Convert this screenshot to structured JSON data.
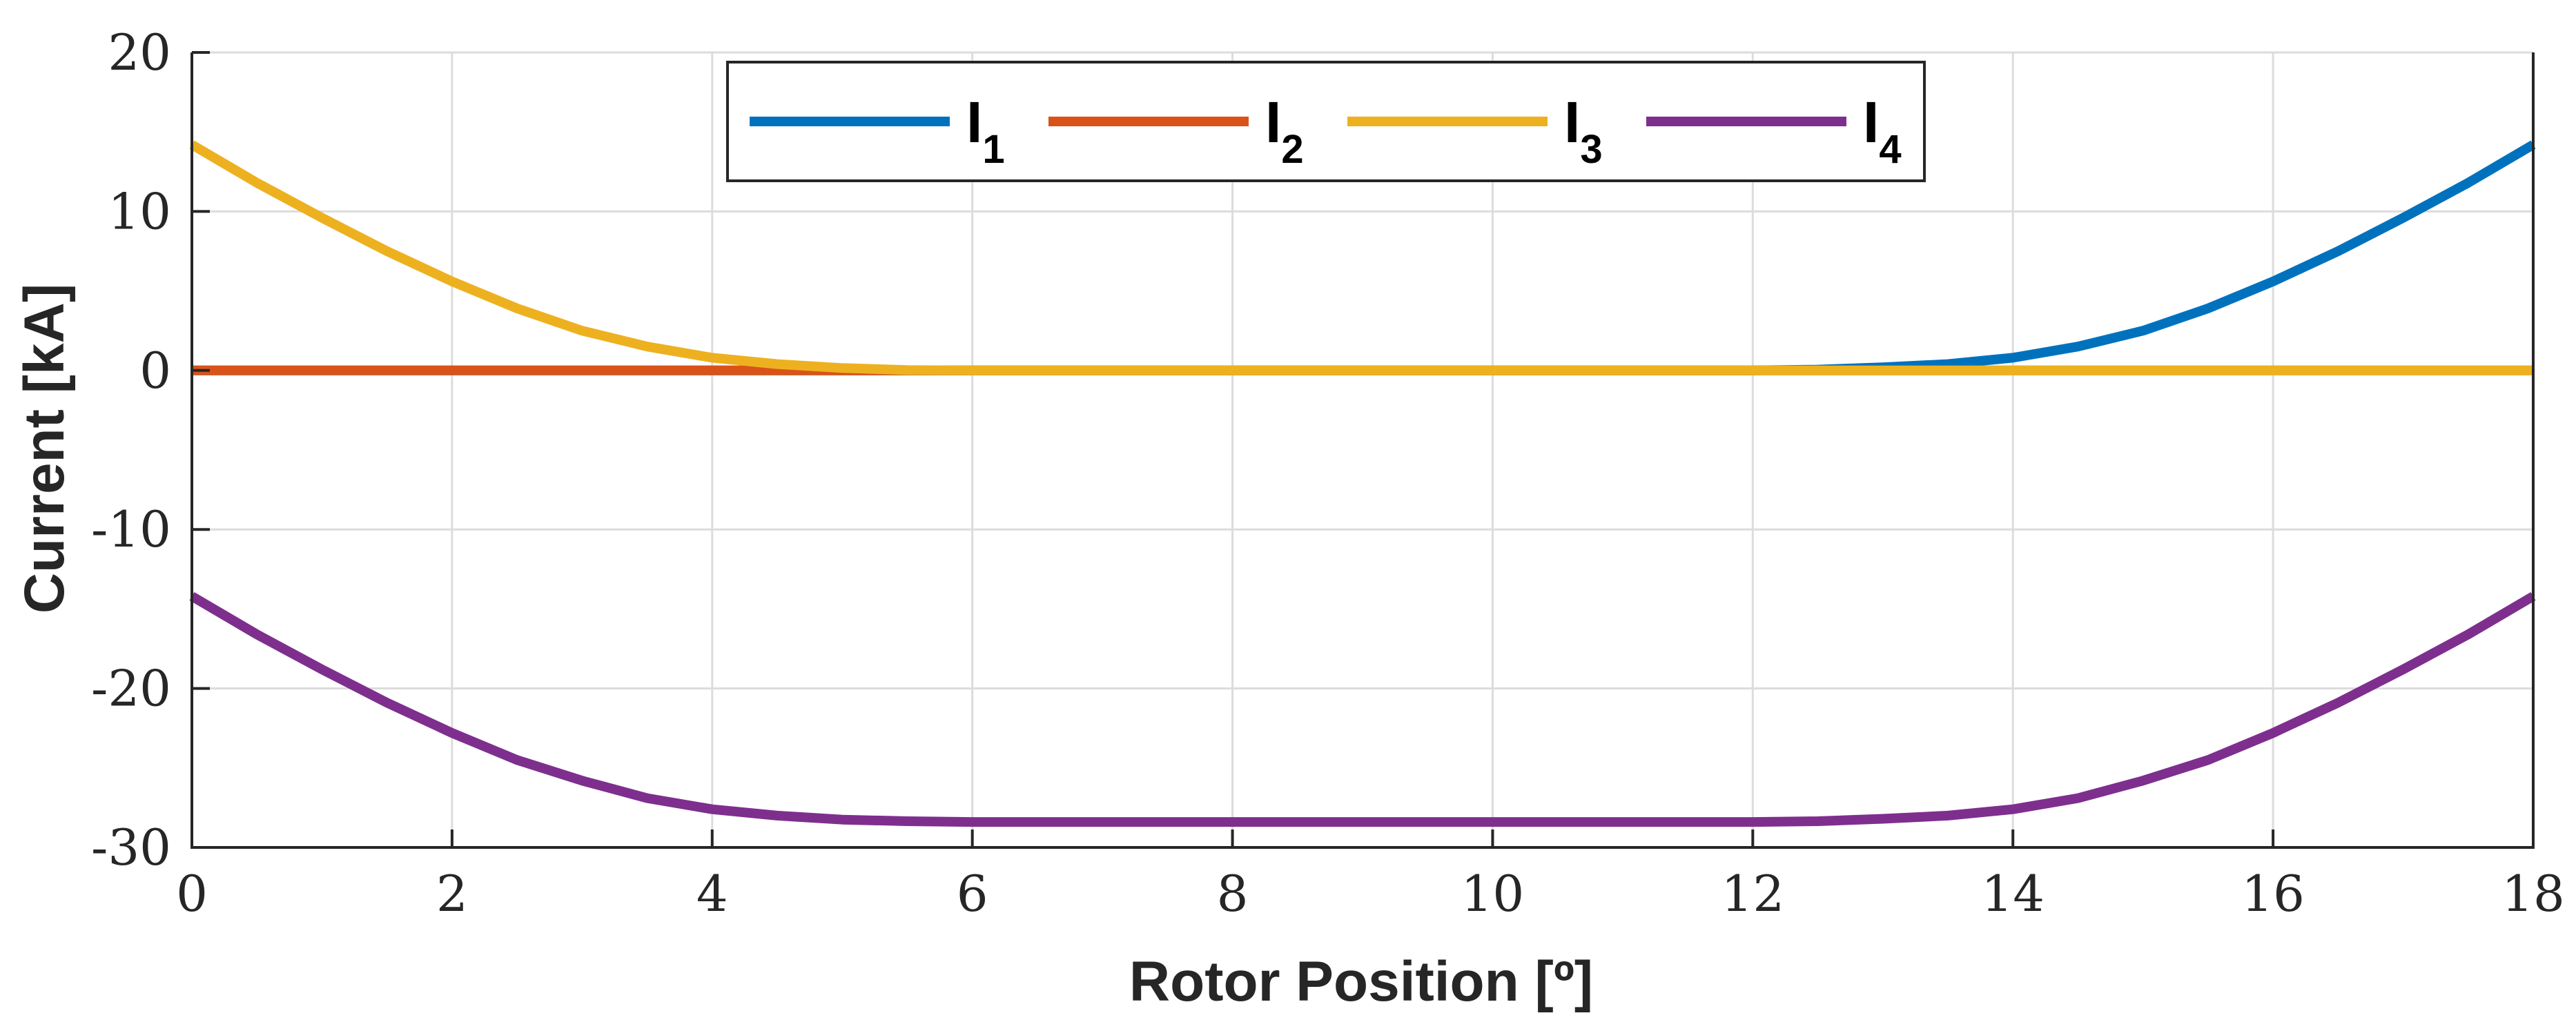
{
  "chart_data": {
    "type": "line",
    "title": "",
    "xlabel": "Rotor Position [º]",
    "ylabel": "Current [kA]",
    "xlim": [
      0,
      18
    ],
    "ylim": [
      -30,
      20
    ],
    "xticks": [
      0,
      2,
      4,
      6,
      8,
      10,
      12,
      14,
      16,
      18
    ],
    "yticks": [
      -30,
      -20,
      -10,
      0,
      10,
      20
    ],
    "grid": true,
    "legend": {
      "placement": "top-center",
      "orientation": "horizontal"
    },
    "series": [
      {
        "name": "I",
        "subscript": "1",
        "color": "#0072BD",
        "x": [
          0,
          2,
          4,
          6,
          8,
          10,
          12,
          12.5,
          13,
          13.5,
          14,
          14.5,
          15,
          15.5,
          16,
          16.5,
          17,
          17.5,
          18
        ],
        "y": [
          0,
          0,
          0,
          0,
          0,
          0,
          0,
          0.05,
          0.2,
          0.4,
          0.8,
          1.5,
          2.5,
          3.9,
          5.6,
          7.5,
          9.6,
          11.8,
          14.2
        ]
      },
      {
        "name": "I",
        "subscript": "2",
        "color": "#D95319",
        "x": [
          0,
          2,
          4,
          6,
          8,
          10,
          12,
          14,
          16,
          18
        ],
        "y": [
          0,
          0,
          0,
          0,
          0,
          0,
          0,
          0,
          0,
          0
        ]
      },
      {
        "name": "I",
        "subscript": "3",
        "color": "#EDB120",
        "x": [
          0,
          0.5,
          1,
          1.5,
          2,
          2.5,
          3,
          3.5,
          4,
          4.5,
          5,
          5.5,
          6,
          8,
          10,
          12,
          14,
          16,
          18
        ],
        "y": [
          14.2,
          11.8,
          9.6,
          7.5,
          5.6,
          3.9,
          2.5,
          1.5,
          0.8,
          0.4,
          0.15,
          0.02,
          0,
          0,
          0,
          0,
          0,
          0,
          0
        ]
      },
      {
        "name": "I",
        "subscript": "4",
        "color": "#7E2F8E",
        "x": [
          0,
          0.5,
          1,
          1.5,
          2,
          2.5,
          3,
          3.5,
          4,
          4.5,
          5,
          5.5,
          6,
          8,
          10,
          12,
          12.5,
          13,
          13.5,
          14,
          14.5,
          15,
          15.5,
          16,
          16.5,
          17,
          17.5,
          18
        ],
        "y": [
          -14.2,
          -16.6,
          -18.8,
          -20.9,
          -22.8,
          -24.5,
          -25.8,
          -26.9,
          -27.6,
          -28.0,
          -28.25,
          -28.35,
          -28.4,
          -28.4,
          -28.4,
          -28.4,
          -28.35,
          -28.2,
          -28.0,
          -27.6,
          -26.9,
          -25.8,
          -24.5,
          -22.8,
          -20.9,
          -18.8,
          -16.6,
          -14.2
        ]
      }
    ]
  }
}
